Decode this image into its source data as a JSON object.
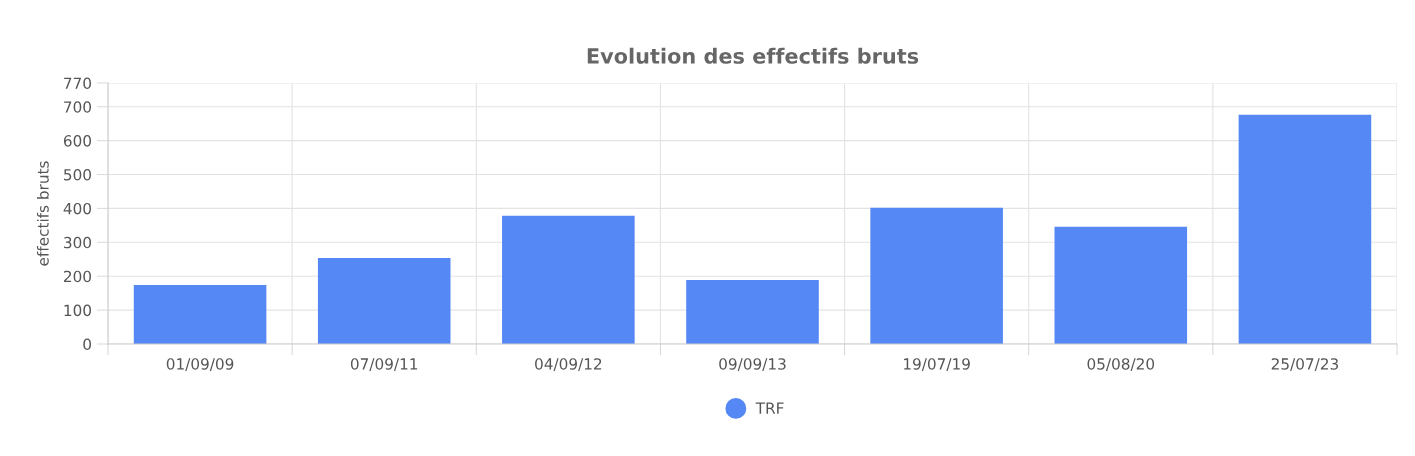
{
  "chart_data": {
    "type": "bar",
    "title": "Evolution des effectifs bruts",
    "ylabel": "effectifs bruts",
    "categories": [
      "01/09/09",
      "07/09/11",
      "04/09/12",
      "09/09/13",
      "19/07/19",
      "05/08/20",
      "25/07/23"
    ],
    "series": [
      {
        "name": "TRF",
        "color": "#5587f5",
        "values": [
          174,
          254,
          378,
          189,
          402,
          346,
          676
        ]
      }
    ],
    "ylim": [
      0,
      770
    ],
    "yticks": [
      0,
      100,
      200,
      300,
      400,
      500,
      600,
      700,
      770
    ],
    "grid": true,
    "legend": "bottom",
    "marker": "circle"
  }
}
